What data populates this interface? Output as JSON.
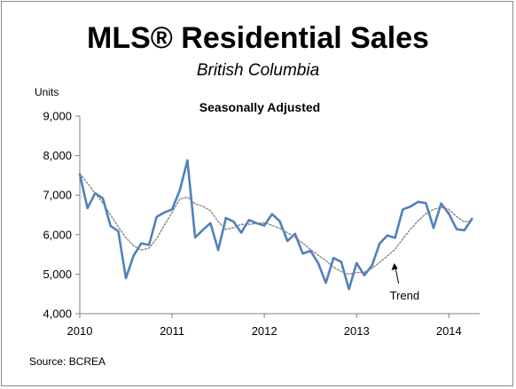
{
  "chart_data": {
    "type": "line",
    "title": "MLS® Residential Sales",
    "subtitle": "British Columbia",
    "note": "Seasonally Adjusted",
    "ylabel": "Units",
    "source": "Source: BCREA",
    "annotation": "Trend",
    "ylim": [
      4000,
      9000
    ],
    "yticks": [
      4000,
      5000,
      6000,
      7000,
      8000,
      9000
    ],
    "ytick_labels": [
      "4,000",
      "5,000",
      "6,000",
      "7,000",
      "8,000",
      "9,000"
    ],
    "xlim": [
      "2010-01",
      "2014-05"
    ],
    "xticks": [
      "2010-01",
      "2011-01",
      "2012-01",
      "2013-01",
      "2014-01"
    ],
    "xtick_labels": [
      "2010",
      "2011",
      "2012",
      "2013",
      "2014"
    ],
    "x": [
      "2010-01",
      "2010-02",
      "2010-03",
      "2010-04",
      "2010-05",
      "2010-06",
      "2010-07",
      "2010-08",
      "2010-09",
      "2010-10",
      "2010-11",
      "2010-12",
      "2011-01",
      "2011-02",
      "2011-03",
      "2011-04",
      "2011-05",
      "2011-06",
      "2011-07",
      "2011-08",
      "2011-09",
      "2011-10",
      "2011-11",
      "2011-12",
      "2012-01",
      "2012-02",
      "2012-03",
      "2012-04",
      "2012-05",
      "2012-06",
      "2012-07",
      "2012-08",
      "2012-09",
      "2012-10",
      "2012-11",
      "2012-12",
      "2013-01",
      "2013-02",
      "2013-03",
      "2013-04",
      "2013-05",
      "2013-06",
      "2013-07",
      "2013-08",
      "2013-09",
      "2013-10",
      "2013-11",
      "2013-12",
      "2014-01",
      "2014-02",
      "2014-03",
      "2014-04"
    ],
    "series": [
      {
        "name": "",
        "color": "#4f81bd",
        "style": "solid",
        "values": [
          7530,
          6670,
          7050,
          6920,
          6220,
          6090,
          4900,
          5470,
          5780,
          5740,
          6450,
          6560,
          6640,
          7120,
          7880,
          5930,
          6120,
          6290,
          5610,
          6420,
          6330,
          6050,
          6370,
          6290,
          6230,
          6520,
          6340,
          5840,
          6020,
          5520,
          5590,
          5280,
          4780,
          5410,
          5310,
          4620,
          5280,
          4970,
          5220,
          5780,
          5980,
          5920,
          6640,
          6710,
          6830,
          6800,
          6170,
          6790,
          6530,
          6140,
          6110,
          6400
        ]
      },
      {
        "name": "Trend",
        "color": "#808080",
        "style": "dotted",
        "values": [
          7550,
          7300,
          7050,
          6800,
          6500,
          6200,
          5920,
          5720,
          5610,
          5660,
          5900,
          6240,
          6560,
          6900,
          6950,
          6780,
          6720,
          6600,
          6330,
          6130,
          6180,
          6260,
          6260,
          6280,
          6300,
          6240,
          6160,
          6050,
          5930,
          5790,
          5620,
          5480,
          5340,
          5180,
          5060,
          5000,
          5040,
          5050,
          5150,
          5300,
          5460,
          5630,
          5890,
          6140,
          6350,
          6530,
          6640,
          6690,
          6640,
          6460,
          6320,
          6360
        ]
      }
    ],
    "grid": false,
    "legend": "none"
  }
}
